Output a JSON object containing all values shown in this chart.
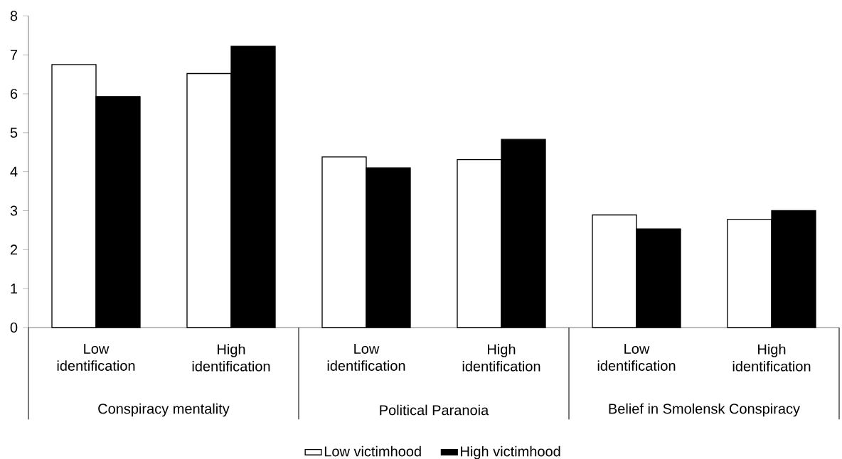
{
  "chart_data": {
    "type": "bar",
    "categories": [
      "Low identification",
      "High identification",
      "Low identification",
      "High identification",
      "Low identification",
      "High identification"
    ],
    "series": [
      {
        "name": "Low victimhood",
        "color": "#ffffff",
        "values": [
          6.75,
          6.52,
          4.38,
          4.31,
          2.89,
          2.78
        ]
      },
      {
        "name": "High victimhood",
        "color": "#000000",
        "values": [
          5.93,
          7.22,
          4.1,
          4.83,
          2.53,
          3.0
        ]
      }
    ],
    "annotations": [
      "Conspiracy mentality",
      "Political Paranoia",
      "Belief in Smolensk Conspiracy"
    ],
    "ylim": [
      0,
      8
    ],
    "yticks": [
      0,
      1,
      2,
      3,
      4,
      5,
      6,
      7,
      8
    ],
    "legend": "bottom"
  }
}
